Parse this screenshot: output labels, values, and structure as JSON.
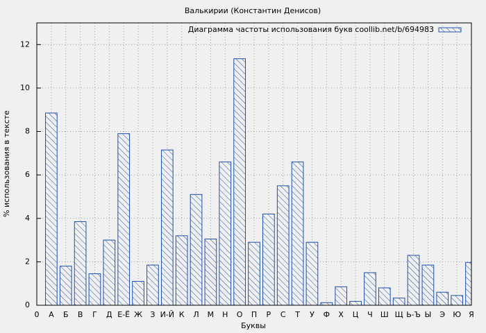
{
  "chart_data": {
    "type": "bar",
    "title": "Валькирии (Константин Денисов)",
    "xlabel": "Буквы",
    "ylabel": "% использования в тексте",
    "categories": [
      "0",
      "А",
      "Б",
      "В",
      "Г",
      "Д",
      "Е-Ё",
      "Ж",
      "З",
      "И-Й",
      "К",
      "Л",
      "М",
      "Н",
      "О",
      "П",
      "Р",
      "С",
      "Т",
      "У",
      "Ф",
      "Х",
      "Ц",
      "Ч",
      "Ш",
      "Щ",
      "Ь-Ъ",
      "Ы",
      "Э",
      "Ю",
      "Я"
    ],
    "series": [
      {
        "name": "Диаграмма частоты использования букв coollib.net/b/694983",
        "color": "#1f4fa8",
        "values": [
          null,
          8.85,
          1.8,
          3.85,
          1.45,
          3.0,
          7.9,
          1.1,
          1.85,
          7.15,
          3.2,
          5.1,
          3.05,
          6.6,
          11.35,
          2.9,
          4.2,
          5.5,
          6.6,
          2.9,
          0.12,
          0.85,
          0.18,
          1.5,
          0.8,
          0.33,
          2.3,
          1.85,
          0.6,
          0.45,
          1.97
        ]
      }
    ],
    "ylim": [
      0,
      13
    ],
    "yticks": [
      0,
      2,
      4,
      6,
      8,
      10,
      12
    ],
    "grid": true,
    "legend": "top-right"
  }
}
